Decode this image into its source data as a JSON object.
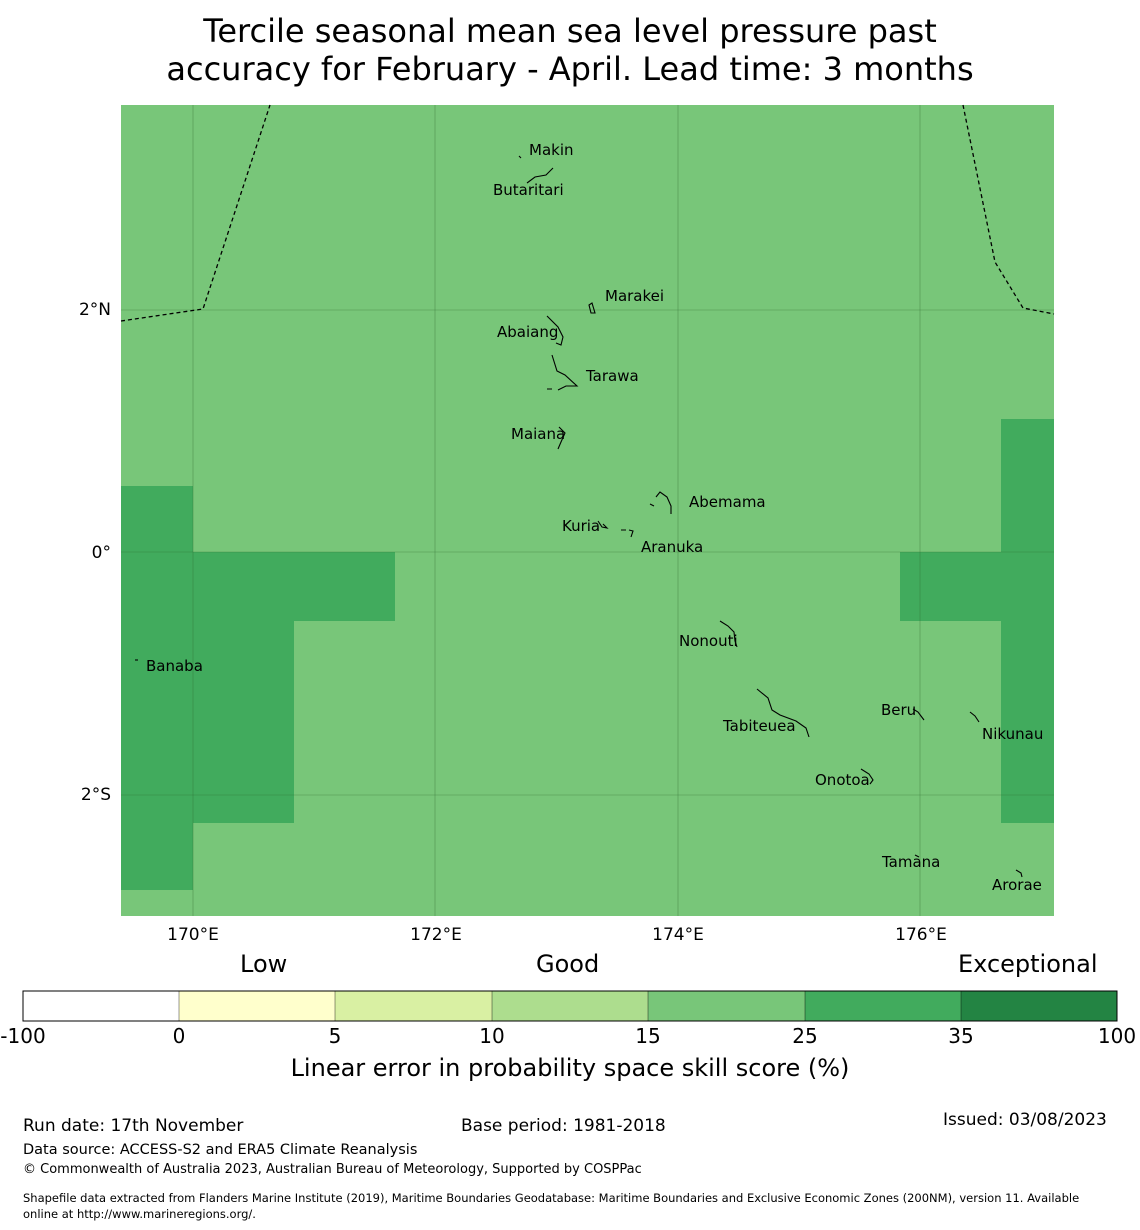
{
  "title": {
    "line1": "Tercile seasonal mean sea level pressure past",
    "line2": "accuracy for February - April. Lead time: 3 months"
  },
  "map": {
    "background_color": "#78c679",
    "high_color": "#41ab5d",
    "x_ticks": [
      "170°E",
      "172°E",
      "174°E",
      "176°E"
    ],
    "y_ticks": [
      "2°N",
      "0°",
      "2°S"
    ],
    "islands": [
      "Makin",
      "Butaritari",
      "Marakei",
      "Abaiang",
      "Tarawa",
      "Maiana",
      "Abemama",
      "Kuria",
      "Aranuka",
      "Nonouti",
      "Banaba",
      "Tabiteuea",
      "Beru",
      "Nikunau",
      "Onotoa",
      "Tamana",
      "Arorae"
    ]
  },
  "colorbar": {
    "words": {
      "low": "Low",
      "good": "Good",
      "exceptional": "Exceptional"
    },
    "ticks": [
      "-100",
      "0",
      "5",
      "10",
      "15",
      "25",
      "35",
      "100"
    ],
    "colors": [
      "#ffffff",
      "#ffffcc",
      "#d9f0a3",
      "#addd8e",
      "#78c679",
      "#41ab5d",
      "#238443"
    ],
    "label": "Linear error in probability space skill score (%)"
  },
  "footer": {
    "run_date": "Run date: 17th November",
    "base_period": "Base period: 1981-2018",
    "issued": "Issued: 03/08/2023",
    "data_source": "Data source: ACCESS-S2 and ERA5 Climate Reanalysis",
    "copyright": "© Commonwealth of Australia 2023, Australian Bureau of Meteorology, Supported by COSPPac",
    "shapefile_line1": "Shapefile data extracted from Flanders Marine Institute (2019), Maritime Boundaries Geodatabase: Maritime Boundaries and Exclusive Economic Zones (200NM), version 11. Available",
    "shapefile_line2": "online at http://www.marineregions.org/."
  }
}
